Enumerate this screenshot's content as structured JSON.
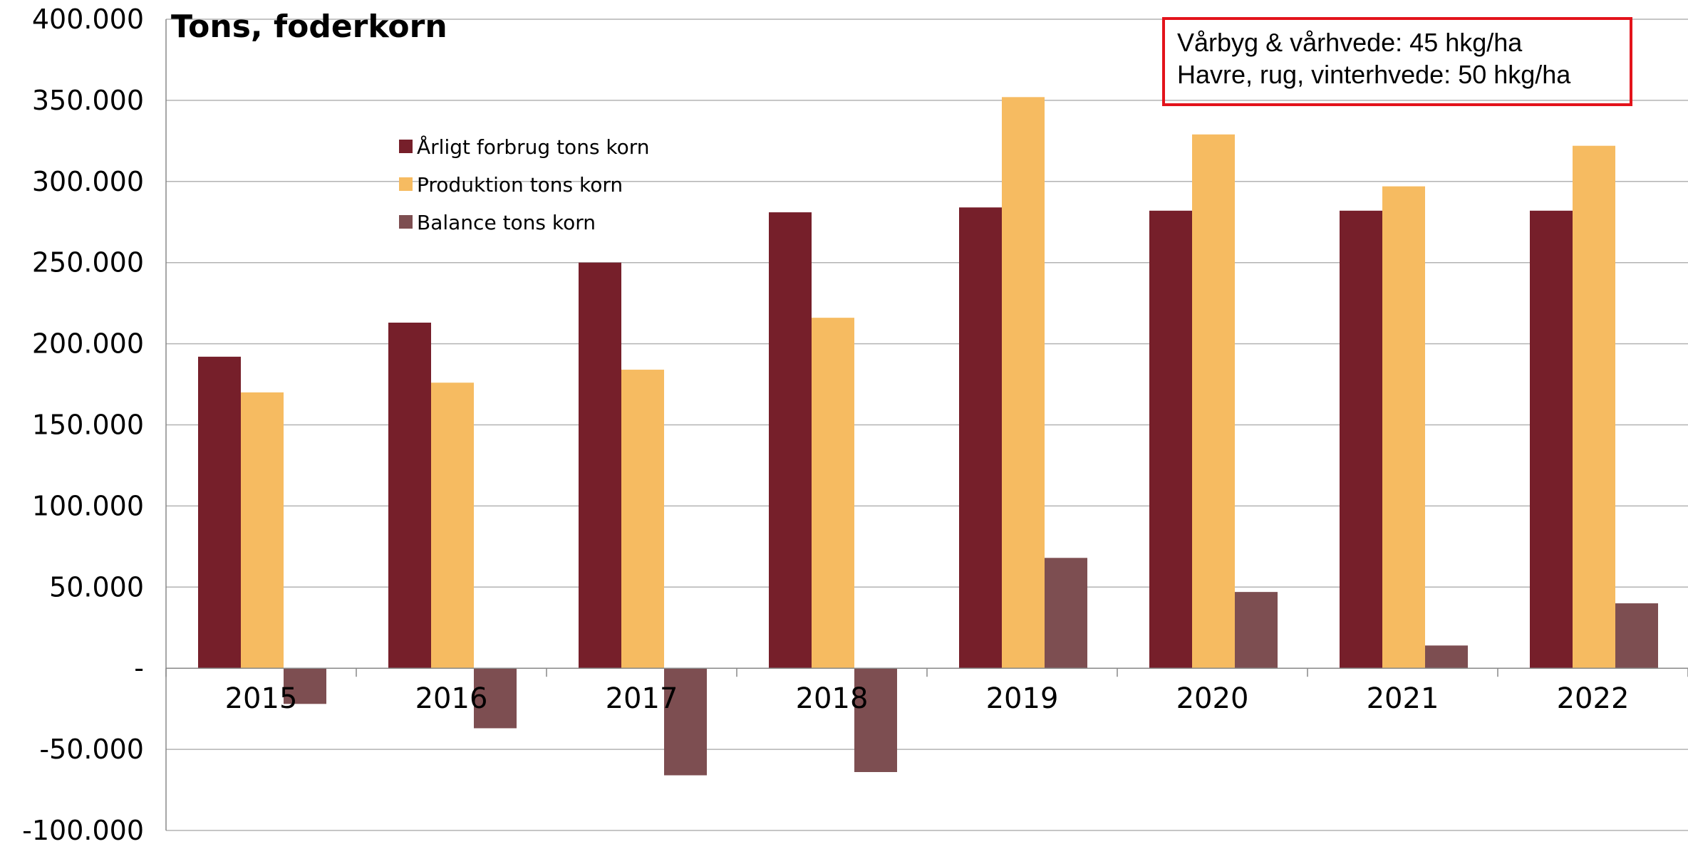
{
  "chart_data": {
    "type": "bar",
    "title": "Tons,  foderkorn",
    "categories": [
      "2015",
      "2016",
      "2017",
      "2018",
      "2019",
      "2020",
      "2021",
      "2022"
    ],
    "series": [
      {
        "name": "Årligt forbrug tons korn",
        "color": "#761f2a",
        "values": [
          192000,
          213000,
          250000,
          281000,
          284000,
          282000,
          282000,
          282000
        ]
      },
      {
        "name": "Produktion tons korn",
        "color": "#f6bb61",
        "values": [
          170000,
          176000,
          184000,
          216000,
          352000,
          329000,
          297000,
          322000
        ]
      },
      {
        "name": "Balance tons korn",
        "color": "#7d4e51",
        "values": [
          -22000,
          -37000,
          -66000,
          -64000,
          68000,
          47000,
          14000,
          40000
        ]
      }
    ],
    "yticks": [
      "400.000",
      "350.000",
      "300.000",
      "250.000",
      "200.000",
      "150.000",
      "100.000",
      "50.000",
      "-",
      "-50.000",
      "-100.000"
    ],
    "ylim": [
      -100000,
      400000
    ],
    "grid": true,
    "legend_position": "upper-left-inside",
    "note": {
      "lines": [
        "Vårbyg & vårhvede: 45 hkg/ha",
        "Havre, rug, vinterhvede: 50 hkg/ha"
      ],
      "border_color": "#e3131b"
    }
  }
}
